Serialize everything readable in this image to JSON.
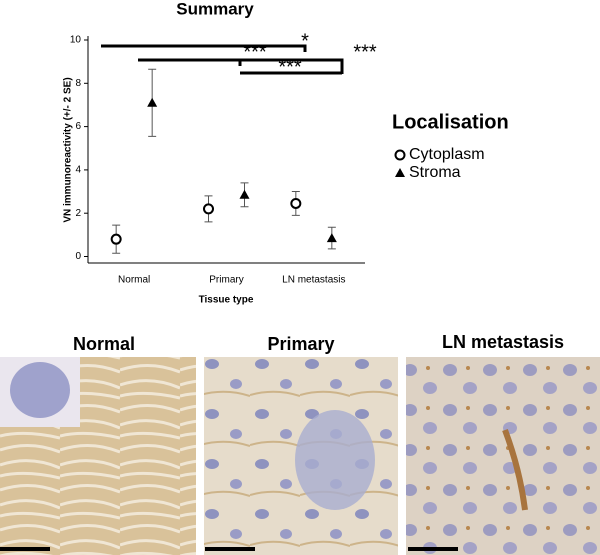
{
  "chart_data": {
    "type": "errorbar",
    "title": "Summary",
    "y_label": "VN immunoreactivity (+/- 2 SE)",
    "x_label": "Tissue type",
    "categories": [
      "Normal",
      "Primary",
      "LN metastasis"
    ],
    "ylim": [
      -0.3,
      10
    ],
    "yticks": [
      0,
      2,
      4,
      6,
      8,
      10
    ],
    "legend_title": "Localisation",
    "series": [
      {
        "name": "Cytoplasm",
        "marker": "circle",
        "color": "#000000",
        "values": [
          0.8,
          2.2,
          2.45
        ],
        "errors": [
          0.65,
          0.6,
          0.55
        ]
      },
      {
        "name": "Stroma",
        "marker": "triangle",
        "color": "#000000",
        "values": [
          7.1,
          2.85,
          0.85
        ],
        "errors": [
          1.55,
          0.55,
          0.5
        ]
      }
    ],
    "annotations": [
      "*",
      "***",
      "***",
      "***"
    ]
  },
  "panels": [
    "Normal",
    "Primary",
    "LN metastasis"
  ]
}
